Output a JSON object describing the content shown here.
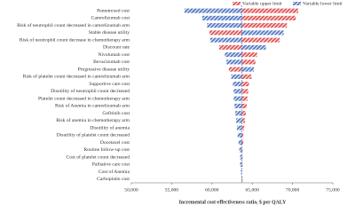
{
  "chart_data": {
    "type": "tornado",
    "x_label": "Incremental cost-effectiveness ratio, $ per QALY",
    "categories": [
      "Pemetrexed cost",
      "Camrelizumab cost",
      "Risk of neutrophil count decreased in camrelizumab arm",
      "Stable disease utility",
      "Risk of neutrophil count decrease in chemotherapy arm",
      "Discount rate",
      "Nivolumab cost",
      "Bevacizumab cost",
      "Progressive disease utility",
      "Risk of platelet count decreased in camrelizumab arm",
      "Supportive care cost",
      "Disutility of neutrophil count decreased",
      "Platelet count decreased in chemotherapy arm",
      "Risk of Anemia in camrelizumab arm",
      "Gefitinib cost",
      "Risk of anemia in chemotherapy arm",
      "Disutility of anemia",
      "Disutility of platelet count decreased",
      "Docetaxel cost",
      "Routine follow-up cost",
      "Cost of platelet count decreased",
      "Palliative care cost",
      "Cost of Anemia",
      "Carboplatin cost"
    ],
    "base": 63700,
    "series": [
      {
        "name": "Variable upper limit",
        "color": "#e05a5a",
        "values": [
          70700,
          70400,
          69300,
          59700,
          68400,
          60900,
          65600,
          65400,
          62100,
          64900,
          64600,
          64500,
          64400,
          64300,
          64200,
          64100,
          64000,
          63900,
          63900,
          63800,
          63800,
          63800,
          63700,
          63800
        ]
      },
      {
        "name": "Variable lower limit",
        "color": "#5b7fc7",
        "values": [
          56600,
          58800,
          59400,
          68900,
          59800,
          66700,
          61600,
          61800,
          65200,
          62400,
          62600,
          62700,
          62700,
          62800,
          62900,
          63000,
          63100,
          63200,
          63300,
          63400,
          63500,
          63500,
          63600,
          63700
        ]
      }
    ],
    "xlim": [
      50000,
      75000
    ],
    "xticks": [
      {
        "value": 50000,
        "label": "50,000"
      },
      {
        "value": 55000,
        "label": "55,000"
      },
      {
        "value": 60000,
        "label": "60,000"
      },
      {
        "value": 65000,
        "label": "65,000"
      },
      {
        "value": 70000,
        "label": "70,000"
      },
      {
        "value": 75000,
        "label": "75,000"
      }
    ],
    "legend": "top-right"
  }
}
